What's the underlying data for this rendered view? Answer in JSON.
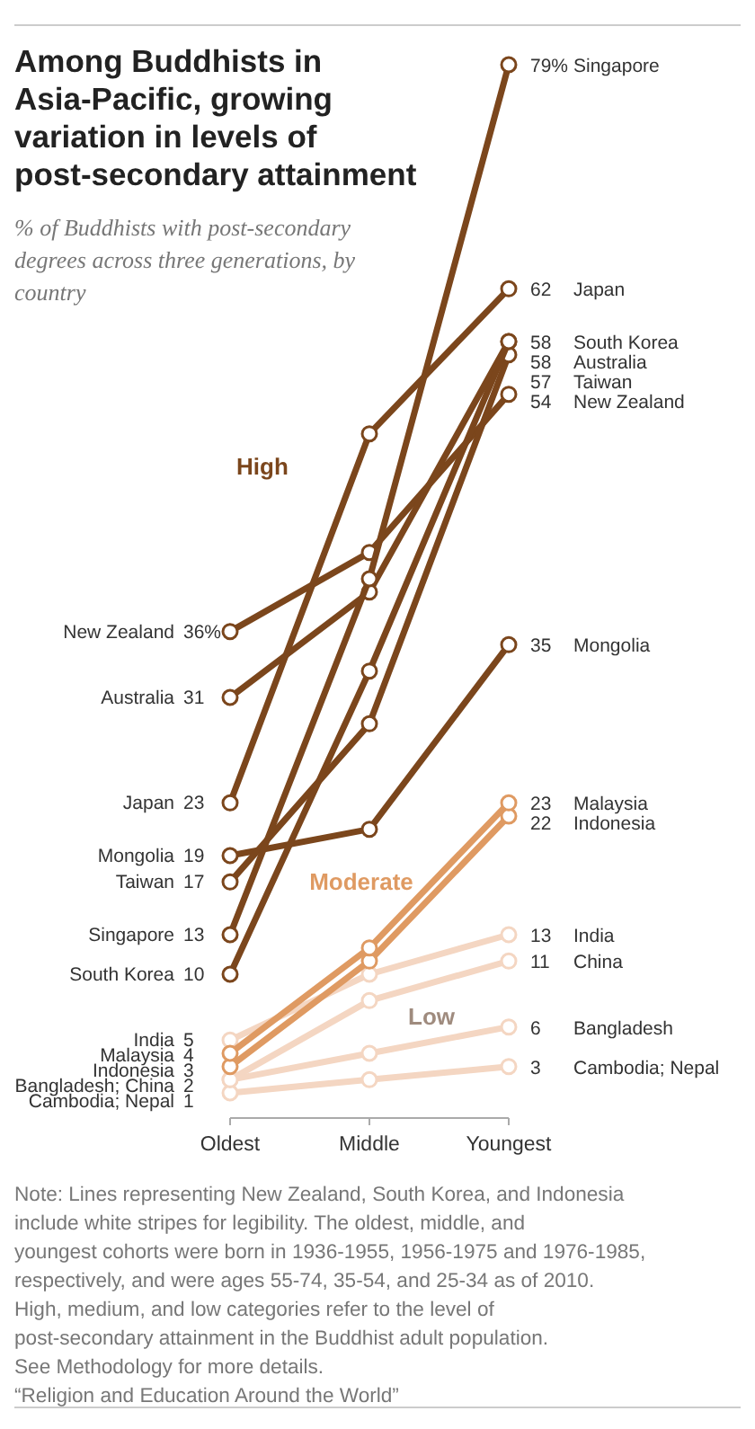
{
  "chart_data": {
    "type": "line",
    "title": "Among Buddhists in Asia-Pacific, growing variation in levels of post-secondary attainment",
    "subtitle": "% of Buddhists with post-secondary degrees across three generations, by country",
    "categories": [
      "Oldest",
      "Middle",
      "Youngest"
    ],
    "marker": "circle",
    "line_style": "solid",
    "grid": false,
    "series": [
      {
        "name": "Singapore",
        "color": "#7b461c",
        "values": [
          13,
          40,
          79
        ],
        "value_labels": [
          "13",
          null,
          "79%"
        ]
      },
      {
        "name": "Japan",
        "color": "#7b461c",
        "values": [
          23,
          51,
          62
        ],
        "value_labels": [
          "23",
          null,
          "62"
        ]
      },
      {
        "name": "South Korea",
        "color": "#7b461c",
        "values": [
          10,
          33,
          58
        ],
        "value_labels": [
          "10",
          null,
          "58"
        ]
      },
      {
        "name": "Australia",
        "color": "#7b461c",
        "values": [
          31,
          39,
          58
        ],
        "value_labels": [
          "31",
          null,
          "58"
        ]
      },
      {
        "name": "Taiwan",
        "color": "#7b461c",
        "values": [
          17,
          29,
          57
        ],
        "value_labels": [
          "17",
          null,
          "57"
        ]
      },
      {
        "name": "New Zealand",
        "color": "#7b461c",
        "values": [
          36,
          42,
          54
        ],
        "value_labels": [
          "36%",
          null,
          "54"
        ]
      },
      {
        "name": "Mongolia",
        "color": "#7b461c",
        "values": [
          19,
          21,
          35
        ],
        "value_labels": [
          "19",
          null,
          "35"
        ]
      },
      {
        "name": "Malaysia",
        "color": "#df9a62",
        "values": [
          4,
          12,
          23
        ],
        "value_labels": [
          "4",
          null,
          "23"
        ]
      },
      {
        "name": "Indonesia",
        "color": "#df9a62",
        "values": [
          3,
          11,
          22
        ],
        "value_labels": [
          "3",
          null,
          "22"
        ]
      },
      {
        "name": "India",
        "color": "#f4d6c2",
        "values": [
          5,
          10,
          13
        ],
        "value_labels": [
          "5",
          null,
          "13"
        ]
      },
      {
        "name": "China",
        "color": "#f4d6c2",
        "values": [
          2,
          8,
          11
        ],
        "value_labels": [
          null,
          null,
          "11"
        ]
      },
      {
        "name": "Bangladesh",
        "color": "#f4d6c2",
        "values": [
          2,
          4,
          6
        ],
        "value_labels": [
          "2",
          null,
          "6"
        ]
      },
      {
        "name": "Cambodia; Nepal",
        "color": "#f4d6c2",
        "values": [
          1,
          2,
          3
        ],
        "value_labels": [
          "1",
          null,
          "3"
        ]
      }
    ],
    "annotations": [
      "High",
      "Moderate",
      "Low",
      {
        "text": "Bangladesh; China",
        "x": "Oldest",
        "y": 2
      },
      "Note: Lines representing New Zealand, South Korea, and Indonesia include white stripes for legibility. The oldest, middle, and youngest cohorts were born in 1936-1955, 1956-1975 and 1976-1985, respectively, and were ages 55-74, 35-54, and 25-34 as of 2010. High, medium, and low categories refer to the level of post-secondary attainment in the Buddhist adult population.",
      "See Methodology for more details.",
      "“Religion and Education Around the World”"
    ]
  }
}
